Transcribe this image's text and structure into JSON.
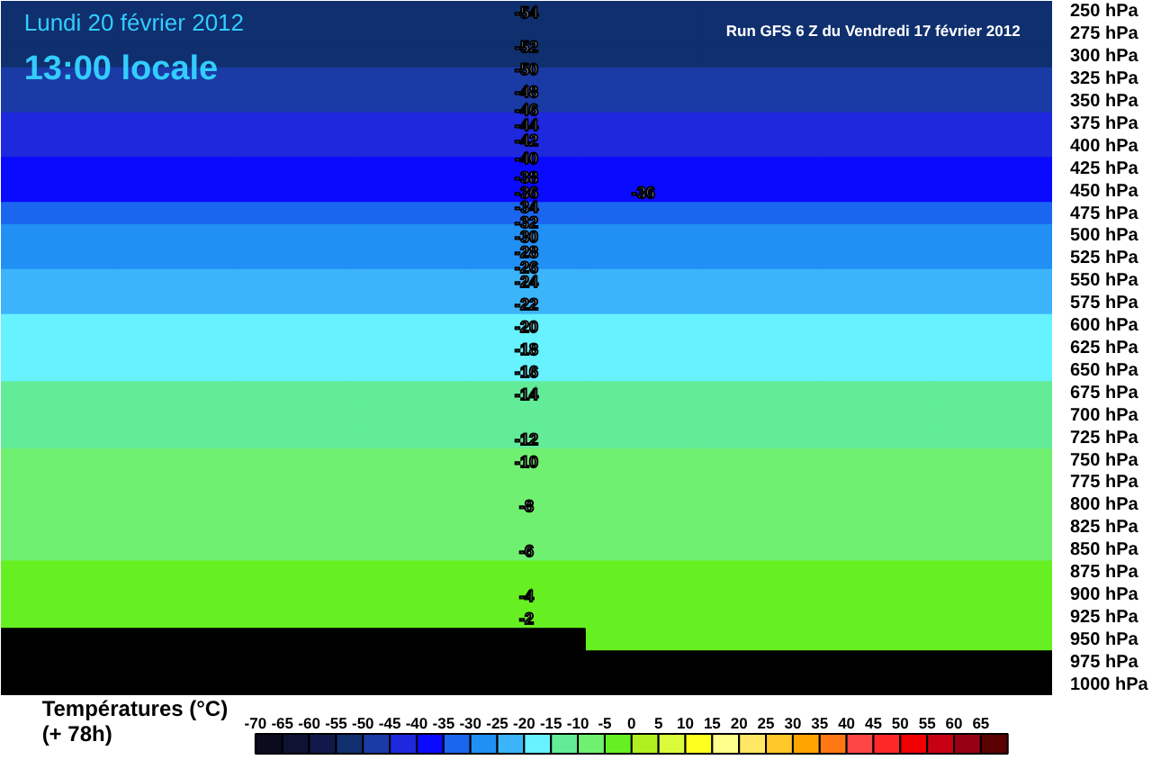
{
  "chart_data": {
    "type": "heatmap",
    "title": "Lundi 20 février 2012",
    "subtitle": "13:00 locale",
    "clabel": "Températures (°C)",
    "categories": [
      null,
      null,
      null,
      null,
      null,
      null,
      null,
      null,
      null
    ],
    "y_categories": [
      "250 hPa",
      "275 hPa",
      "300 hPa",
      "325 hPa",
      "350 hPa",
      "375 hPa",
      "400 hPa",
      "425 hPa",
      "450 hPa",
      "475 hPa",
      "500 hPa",
      "525 hPa",
      "550 hPa",
      "575 hPa",
      "600 hPa",
      "625 hPa",
      "650 hPa",
      "675 hPa",
      "700 hPa",
      "725 hPa",
      "750 hPa",
      "775 hPa",
      "800 hPa",
      "825 hPa",
      "850 hPa",
      "875 hPa",
      "900 hPa",
      "925 hPa",
      "950 hPa",
      "975 hPa",
      "1000 hPa"
    ],
    "cells": [
      [
        -54,
        -54,
        -54,
        -54,
        -54,
        -54,
        -54,
        -54,
        -54
      ],
      [
        -53,
        -53,
        -53,
        -53,
        -53,
        -53,
        -53,
        -53,
        -53
      ],
      [
        -51,
        -51,
        -51,
        -51,
        -51,
        -51,
        -51,
        -51,
        -51
      ],
      [
        -49,
        -49,
        -49,
        -49,
        -49,
        -49,
        -49,
        -49,
        -49
      ],
      [
        -47,
        -47,
        -47,
        -47,
        -47,
        -47,
        -47,
        -47,
        -47
      ],
      [
        -44,
        -44,
        -44,
        -44,
        -44,
        -44,
        -44,
        -44,
        -44
      ],
      [
        -41,
        -41,
        -41,
        -41,
        -41,
        -41,
        -41,
        -41,
        -41
      ],
      [
        -39,
        -39,
        -39,
        -39,
        -39,
        -39,
        -39,
        -39,
        -39
      ],
      [
        -36,
        -36,
        -36,
        -36,
        -36,
        -36,
        -36,
        -36,
        -36
      ],
      [
        -33,
        -33,
        -33,
        -33,
        -33,
        -33,
        -33,
        -33,
        -33
      ],
      [
        -30,
        -30,
        -30,
        -30,
        -30,
        -30,
        -30,
        -30,
        -30
      ],
      [
        -27,
        -27,
        -27,
        -27,
        -27,
        -27,
        -27,
        -27,
        -27
      ],
      [
        -24,
        -24,
        -24,
        -24,
        -24,
        -24,
        -24,
        -24,
        -24
      ],
      [
        -22,
        -22,
        -22,
        -22,
        -22,
        -22,
        -22,
        -22,
        -22
      ],
      [
        -20,
        -20,
        -20,
        -20,
        -20,
        -20,
        -20,
        -20,
        -20
      ],
      [
        -18,
        -18,
        -18,
        -18,
        -18,
        -18,
        -18,
        -18,
        -18
      ],
      [
        -16,
        -16,
        -16,
        -16,
        -16,
        -16,
        -16,
        -16,
        -16
      ],
      [
        -14,
        -14,
        -14,
        -14,
        -14,
        -14,
        -14,
        -14,
        -14
      ],
      [
        -13,
        -13,
        -13,
        -13,
        -13,
        -13,
        -13,
        -13,
        -13
      ],
      [
        -12,
        -12,
        -12,
        -12,
        -12,
        -12,
        -12,
        -12,
        -12
      ],
      [
        -10,
        -10,
        -10,
        -10,
        -10,
        -10,
        -10,
        -10,
        -10
      ],
      [
        -9,
        -9,
        -9,
        -9,
        -9,
        -9,
        -9,
        -9,
        -9
      ],
      [
        -8,
        -8,
        -8,
        -8,
        -8,
        -8,
        -8,
        -8,
        -8
      ],
      [
        -7,
        -7,
        -7,
        -7,
        -7,
        -7,
        -7,
        -7,
        -7
      ],
      [
        -6,
        -6,
        -6,
        -6,
        -6,
        -6,
        -6,
        -6,
        -6
      ],
      [
        -5,
        -5,
        -5,
        -5,
        -5,
        -5,
        -5,
        -5,
        -5
      ],
      [
        -4,
        -4,
        -4,
        -4,
        -4,
        -4,
        -4,
        -4,
        -4
      ],
      [
        -2,
        -2,
        -2,
        -2,
        -2,
        -2,
        -2,
        -2,
        -2
      ],
      [
        null,
        null,
        null,
        null,
        null,
        -1,
        -1,
        -1,
        -1
      ],
      [
        null,
        null,
        null,
        null,
        null,
        null,
        null,
        null,
        null
      ],
      [
        null,
        null,
        null,
        null,
        null,
        null,
        null,
        null,
        null
      ]
    ],
    "cell_labels": [
      [
        null,
        null,
        null,
        null,
        null,
        null,
        null,
        null,
        null
      ],
      [
        null,
        null,
        null,
        null,
        null,
        null,
        null,
        null,
        null
      ],
      [
        null,
        null,
        null,
        null,
        null,
        null,
        null,
        null,
        null
      ],
      [
        null,
        null,
        null,
        null,
        null,
        null,
        null,
        null,
        null
      ],
      [
        null,
        null,
        null,
        null,
        null,
        null,
        null,
        null,
        null
      ],
      [
        null,
        null,
        null,
        null,
        null,
        null,
        null,
        null,
        null
      ],
      [
        null,
        null,
        null,
        null,
        null,
        null,
        null,
        null,
        null
      ],
      [
        null,
        null,
        null,
        null,
        null,
        null,
        null,
        null,
        null
      ],
      [
        null,
        null,
        null,
        null,
        null,
        "-36",
        null,
        null,
        null
      ],
      [
        null,
        null,
        null,
        null,
        null,
        null,
        null,
        null,
        null
      ],
      [
        null,
        null,
        null,
        null,
        null,
        null,
        null,
        null,
        null
      ],
      [
        null,
        null,
        null,
        null,
        null,
        null,
        null,
        null,
        null
      ],
      [
        null,
        null,
        null,
        null,
        null,
        null,
        null,
        null,
        null
      ],
      [
        null,
        null,
        null,
        null,
        null,
        null,
        null,
        null,
        null
      ],
      [
        null,
        null,
        null,
        null,
        null,
        null,
        null,
        null,
        null
      ],
      [
        null,
        null,
        null,
        null,
        null,
        null,
        null,
        null,
        null
      ],
      [
        null,
        null,
        null,
        null,
        null,
        null,
        null,
        null,
        null
      ],
      [
        null,
        null,
        null,
        null,
        null,
        null,
        null,
        null,
        null
      ],
      [
        null,
        null,
        null,
        null,
        null,
        null,
        null,
        null,
        null
      ],
      [
        null,
        null,
        null,
        null,
        null,
        null,
        null,
        null,
        null
      ],
      [
        null,
        null,
        null,
        null,
        null,
        null,
        null,
        null,
        null
      ],
      [
        null,
        null,
        null,
        null,
        null,
        null,
        null,
        null,
        null
      ],
      [
        null,
        null,
        null,
        null,
        null,
        null,
        null,
        null,
        null
      ],
      [
        null,
        null,
        null,
        null,
        null,
        null,
        null,
        null,
        null
      ],
      [
        null,
        null,
        null,
        null,
        null,
        null,
        null,
        null,
        null
      ],
      [
        null,
        null,
        null,
        null,
        null,
        null,
        null,
        null,
        null
      ],
      [
        null,
        null,
        null,
        null,
        null,
        null,
        null,
        null,
        null
      ],
      [
        null,
        null,
        null,
        null,
        null,
        null,
        null,
        null,
        null
      ],
      [
        null,
        null,
        null,
        null,
        null,
        null,
        null,
        null,
        null
      ],
      [
        null,
        null,
        null,
        null,
        null,
        null,
        null,
        null,
        null
      ],
      [
        null,
        null,
        null,
        null,
        null,
        null,
        null,
        null,
        null
      ]
    ],
    "clim": [
      -70,
      70
    ],
    "cticks": [
      -70,
      -65,
      -60,
      -55,
      -50,
      -45,
      -40,
      -35,
      -30,
      -25,
      -20,
      -15,
      -10,
      -5,
      0,
      5,
      10,
      15,
      20,
      25,
      30,
      35,
      40,
      45,
      50,
      55,
      60,
      65
    ],
    "tick_labels": "y",
    "annotations": [
      "Run GFS 6 Z du Vendredi 17 février 2012",
      "(+ 78h)",
      "-54",
      "-52",
      "-50",
      "-48",
      "-46",
      "-44",
      "-42",
      "-40",
      "-38",
      "-36",
      "-34",
      "-32",
      "-30",
      "-28",
      "-26",
      "-24",
      "-22",
      "-20",
      "-18",
      "-16",
      "-14",
      "-12",
      "-10",
      "-8",
      "-6",
      "-4",
      "-2"
    ]
  }
}
